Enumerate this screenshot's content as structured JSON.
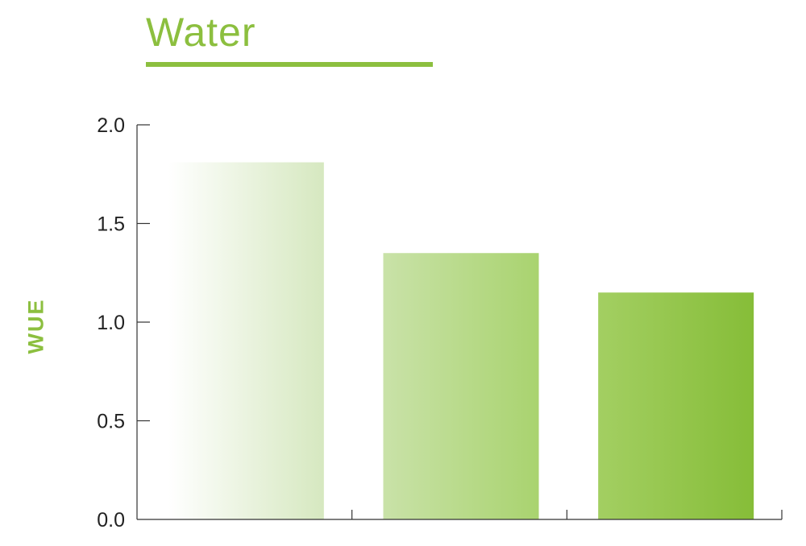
{
  "chart_data": {
    "type": "bar",
    "title": "Water",
    "xlabel": "",
    "ylabel": "WUE",
    "categories": [
      "",
      "",
      ""
    ],
    "values": [
      1.81,
      1.35,
      1.15
    ],
    "ylim": [
      0,
      2.0
    ],
    "yticks": [
      "0.0",
      "0.5",
      "1.0",
      "1.5",
      "2.0"
    ],
    "grid": false,
    "legend": "none",
    "colors": {
      "accent": "#8cbf3f",
      "axis": "#333333",
      "text": "#222222",
      "bar_gradients": [
        [
          "#ffffff",
          "#d6e8c0"
        ],
        [
          "#c9e2a8",
          "#a9d36f"
        ],
        [
          "#a3cf62",
          "#86bd38"
        ]
      ]
    }
  }
}
